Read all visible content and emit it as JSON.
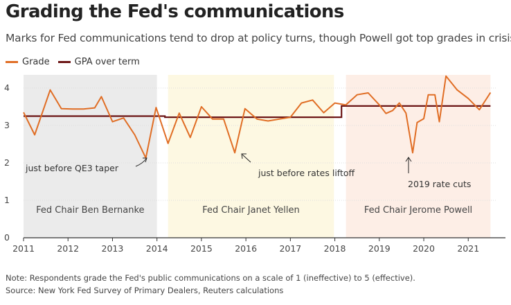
{
  "title": "Grading the Fed's communications",
  "subtitle": "Marks for Fed communications tend to drop at policy turns, though Powell got top grades in crisis.",
  "note": "Note: Respondents grade the Fed's public communications on a scale of 1 (ineffective) to 5 (effective).",
  "source": "Source: New York Fed Survey of Primary Dealers, Reuters calculations",
  "colors": {
    "grade": "#e06d24",
    "gpa": "#6b1414",
    "bernanke_band": "#ebebeb",
    "yellen_band": "#fdf8e2",
    "powell_band": "#fdeee6",
    "axis": "#333333",
    "grid": "#dddddd"
  },
  "chart_data": {
    "type": "line",
    "title": "Grading the Fed's communications",
    "xlabel": "",
    "ylabel": "",
    "xlim": [
      2011.0,
      2021.65
    ],
    "ylim": [
      0,
      4.3
    ],
    "x_ticks": [
      2011,
      2012,
      2013,
      2014,
      2015,
      2016,
      2017,
      2018,
      2019,
      2020,
      2021
    ],
    "y_ticks": [
      0,
      1,
      2,
      3,
      4
    ],
    "legend": [
      "Grade",
      "GPA over term"
    ],
    "legend_position": "top-left",
    "series": [
      {
        "name": "Grade",
        "color": "#e06d24",
        "x": [
          2011.0,
          2011.25,
          2011.6,
          2011.85,
          2012.1,
          2012.35,
          2012.6,
          2012.75,
          2013.0,
          2013.25,
          2013.5,
          2013.75,
          2013.98,
          2014.25,
          2014.5,
          2014.75,
          2015.0,
          2015.25,
          2015.5,
          2015.75,
          2015.98,
          2016.25,
          2016.5,
          2016.75,
          2017.0,
          2017.25,
          2017.5,
          2017.75,
          2018.0,
          2018.25,
          2018.5,
          2018.75,
          2019.0,
          2019.15,
          2019.3,
          2019.45,
          2019.6,
          2019.75,
          2019.85,
          2020.0,
          2020.1,
          2020.25,
          2020.35,
          2020.5,
          2020.75,
          2021.0,
          2021.25,
          2021.5
        ],
        "values": [
          3.35,
          2.75,
          3.95,
          3.45,
          3.44,
          3.44,
          3.47,
          3.77,
          3.1,
          3.2,
          2.75,
          2.13,
          3.48,
          2.52,
          3.33,
          2.68,
          3.5,
          3.17,
          3.17,
          2.27,
          3.45,
          3.17,
          3.12,
          3.17,
          3.22,
          3.6,
          3.68,
          3.34,
          3.6,
          3.55,
          3.82,
          3.87,
          3.55,
          3.32,
          3.4,
          3.6,
          3.33,
          2.27,
          3.08,
          3.18,
          3.82,
          3.82,
          3.1,
          4.32,
          3.95,
          3.72,
          3.42,
          3.88
        ]
      },
      {
        "name": "GPA over term",
        "color": "#6b1414",
        "x": [
          2011.0,
          2014.18,
          2014.18,
          2018.15,
          2018.15,
          2021.5
        ],
        "values": [
          3.25,
          3.25,
          3.22,
          3.22,
          3.52,
          3.52
        ]
      }
    ],
    "regions": [
      {
        "label": "Fed Chair Ben Bernanke",
        "start": 2011.0,
        "end": 2014.0,
        "color": "#ebebeb"
      },
      {
        "label": "Fed Chair Janet Yellen",
        "start": 2014.25,
        "end": 2017.98,
        "color": "#fdf8e2"
      },
      {
        "label": "Fed Chair Jerome Powell",
        "start": 2018.25,
        "end": 2021.5,
        "color": "#fdeee6"
      }
    ],
    "annotations": [
      {
        "label": "just before QE3 taper",
        "x": 2013.75,
        "y": 2.13
      },
      {
        "label": "just before rates liftoff",
        "x": 2015.75,
        "y": 2.27
      },
      {
        "label": "2019 rate cuts",
        "x": 2019.45,
        "y": 2.27
      }
    ]
  }
}
